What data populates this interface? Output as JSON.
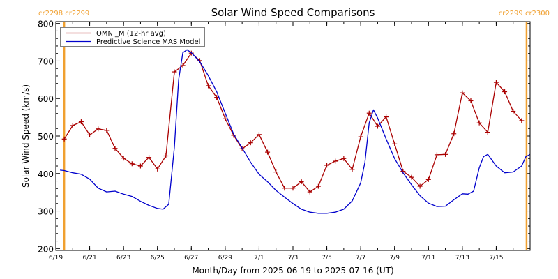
{
  "chart_data": {
    "type": "line",
    "title": "Solar Wind Speed Comparisons",
    "xlabel": "Month/Day from 2025-06-19 to 2025-07-16 (UT)",
    "ylabel": "Solar Wind Speed (km/s)",
    "ylim": [
      195,
      805
    ],
    "xlim": [
      "2025-06-19",
      "2025-07-17"
    ],
    "yticks": [
      200,
      300,
      400,
      500,
      600,
      700,
      800
    ],
    "xticks": [
      {
        "date": "2025-06-19",
        "label": "6/19"
      },
      {
        "date": "2025-06-21",
        "label": "6/21"
      },
      {
        "date": "2025-06-23",
        "label": "6/23"
      },
      {
        "date": "2025-06-25",
        "label": "6/25"
      },
      {
        "date": "2025-06-27",
        "label": "6/27"
      },
      {
        "date": "2025-06-29",
        "label": "6/29"
      },
      {
        "date": "2025-07-01",
        "label": "7/1"
      },
      {
        "date": "2025-07-03",
        "label": "7/3"
      },
      {
        "date": "2025-07-05",
        "label": "7/5"
      },
      {
        "date": "2025-07-07",
        "label": "7/7"
      },
      {
        "date": "2025-07-09",
        "label": "7/9"
      },
      {
        "date": "2025-07-11",
        "label": "7/11"
      },
      {
        "date": "2025-07-13",
        "label": "7/13"
      },
      {
        "date": "2025-07-15",
        "label": "7/15"
      }
    ],
    "grid": false,
    "legend_position": "top-left",
    "rotations": [
      {
        "date": "2025-06-19 12:00",
        "left_label": "cr2298",
        "right_label": "cr2299",
        "label_position": "left",
        "color": "#f0a030"
      },
      {
        "date": "2025-07-16 19:00",
        "left_label": "cr2299",
        "right_label": "cr2300",
        "label_position": "right",
        "color": "#f0a030"
      }
    ],
    "series": [
      {
        "name": "OMNI_M (12-hr avg)",
        "color": "#aa0000",
        "markers": true,
        "points": [
          [
            "2025-06-19 12:00",
            492
          ],
          [
            "2025-06-20 00:00",
            528
          ],
          [
            "2025-06-20 12:00",
            538
          ],
          [
            "2025-06-21 00:00",
            503
          ],
          [
            "2025-06-21 12:00",
            519
          ],
          [
            "2025-06-22 00:00",
            515
          ],
          [
            "2025-06-22 12:00",
            467
          ],
          [
            "2025-06-23 00:00",
            441
          ],
          [
            "2025-06-23 12:00",
            426
          ],
          [
            "2025-06-24 00:00",
            420
          ],
          [
            "2025-06-24 12:00",
            443
          ],
          [
            "2025-06-25 00:00",
            412
          ],
          [
            "2025-06-25 12:00",
            447
          ],
          [
            "2025-06-26 00:00",
            671
          ],
          [
            "2025-06-26 12:00",
            688
          ],
          [
            "2025-06-27 00:00",
            721
          ],
          [
            "2025-06-27 12:00",
            701
          ],
          [
            "2025-06-28 00:00",
            634
          ],
          [
            "2025-06-28 12:00",
            603
          ],
          [
            "2025-06-29 00:00",
            546
          ],
          [
            "2025-06-29 12:00",
            502
          ],
          [
            "2025-06-30 00:00",
            466
          ],
          [
            "2025-06-30 12:00",
            482
          ],
          [
            "2025-07-01 00:00",
            504
          ],
          [
            "2025-07-01 12:00",
            457
          ],
          [
            "2025-07-02 00:00",
            404
          ],
          [
            "2025-07-02 12:00",
            361
          ],
          [
            "2025-07-03 00:00",
            361
          ],
          [
            "2025-07-03 12:00",
            378
          ],
          [
            "2025-07-04 00:00",
            351
          ],
          [
            "2025-07-04 12:00",
            366
          ],
          [
            "2025-07-05 00:00",
            422
          ],
          [
            "2025-07-05 12:00",
            433
          ],
          [
            "2025-07-06 00:00",
            440
          ],
          [
            "2025-07-06 12:00",
            411
          ],
          [
            "2025-07-07 00:00",
            498
          ],
          [
            "2025-07-07 12:00",
            561
          ],
          [
            "2025-07-08 00:00",
            526
          ],
          [
            "2025-07-08 12:00",
            551
          ],
          [
            "2025-07-09 00:00",
            479
          ],
          [
            "2025-07-09 12:00",
            406
          ],
          [
            "2025-07-10 00:00",
            390
          ],
          [
            "2025-07-10 12:00",
            366
          ],
          [
            "2025-07-11 00:00",
            384
          ],
          [
            "2025-07-11 12:00",
            450
          ],
          [
            "2025-07-12 00:00",
            451
          ],
          [
            "2025-07-12 12:00",
            506
          ],
          [
            "2025-07-13 00:00",
            615
          ],
          [
            "2025-07-13 12:00",
            594
          ],
          [
            "2025-07-14 00:00",
            535
          ],
          [
            "2025-07-14 12:00",
            510
          ],
          [
            "2025-07-15 00:00",
            643
          ],
          [
            "2025-07-15 12:00",
            618
          ],
          [
            "2025-07-16 00:00",
            566
          ],
          [
            "2025-07-16 12:00",
            541
          ]
        ]
      },
      {
        "name": "Predictive Science MAS Model",
        "color": "#0000cc",
        "markers": false,
        "points": [
          [
            "2025-06-19 06:00",
            409
          ],
          [
            "2025-06-19 12:00",
            408
          ],
          [
            "2025-06-20 00:00",
            402
          ],
          [
            "2025-06-20 12:00",
            398
          ],
          [
            "2025-06-21 00:00",
            385
          ],
          [
            "2025-06-21 12:00",
            361
          ],
          [
            "2025-06-22 00:00",
            351
          ],
          [
            "2025-06-22 12:00",
            353
          ],
          [
            "2025-06-23 00:00",
            345
          ],
          [
            "2025-06-23 12:00",
            339
          ],
          [
            "2025-06-24 00:00",
            326
          ],
          [
            "2025-06-24 12:00",
            315
          ],
          [
            "2025-06-25 00:00",
            307
          ],
          [
            "2025-06-25 08:00",
            305
          ],
          [
            "2025-06-25 16:00",
            318
          ],
          [
            "2025-06-26 00:00",
            470
          ],
          [
            "2025-06-26 06:00",
            650
          ],
          [
            "2025-06-26 12:00",
            722
          ],
          [
            "2025-06-26 18:00",
            730
          ],
          [
            "2025-06-27 00:00",
            722
          ],
          [
            "2025-06-27 12:00",
            698
          ],
          [
            "2025-06-28 00:00",
            661
          ],
          [
            "2025-06-28 12:00",
            618
          ],
          [
            "2025-06-29 00:00",
            561
          ],
          [
            "2025-06-29 12:00",
            505
          ],
          [
            "2025-06-30 00:00",
            468
          ],
          [
            "2025-06-30 12:00",
            430
          ],
          [
            "2025-07-01 00:00",
            398
          ],
          [
            "2025-07-01 12:00",
            378
          ],
          [
            "2025-07-02 00:00",
            355
          ],
          [
            "2025-07-02 12:00",
            337
          ],
          [
            "2025-07-03 00:00",
            320
          ],
          [
            "2025-07-03 12:00",
            305
          ],
          [
            "2025-07-04 00:00",
            297
          ],
          [
            "2025-07-04 12:00",
            294
          ],
          [
            "2025-07-05 00:00",
            294
          ],
          [
            "2025-07-05 12:00",
            297
          ],
          [
            "2025-07-06 00:00",
            305
          ],
          [
            "2025-07-06 12:00",
            327
          ],
          [
            "2025-07-07 00:00",
            375
          ],
          [
            "2025-07-07 06:00",
            430
          ],
          [
            "2025-07-07 12:00",
            535
          ],
          [
            "2025-07-07 18:00",
            570
          ],
          [
            "2025-07-08 00:00",
            548
          ],
          [
            "2025-07-08 12:00",
            492
          ],
          [
            "2025-07-09 00:00",
            440
          ],
          [
            "2025-07-09 12:00",
            402
          ],
          [
            "2025-07-10 00:00",
            370
          ],
          [
            "2025-07-10 12:00",
            341
          ],
          [
            "2025-07-11 00:00",
            321
          ],
          [
            "2025-07-11 12:00",
            312
          ],
          [
            "2025-07-12 00:00",
            313
          ],
          [
            "2025-07-12 12:00",
            330
          ],
          [
            "2025-07-13 00:00",
            346
          ],
          [
            "2025-07-13 08:00",
            345
          ],
          [
            "2025-07-13 16:00",
            353
          ],
          [
            "2025-07-14 00:00",
            415
          ],
          [
            "2025-07-14 06:00",
            445
          ],
          [
            "2025-07-14 12:00",
            451
          ],
          [
            "2025-07-15 00:00",
            420
          ],
          [
            "2025-07-15 12:00",
            402
          ],
          [
            "2025-07-16 00:00",
            404
          ],
          [
            "2025-07-16 12:00",
            420
          ],
          [
            "2025-07-16 18:00",
            445
          ],
          [
            "2025-07-17 00:00",
            451
          ]
        ]
      }
    ]
  }
}
